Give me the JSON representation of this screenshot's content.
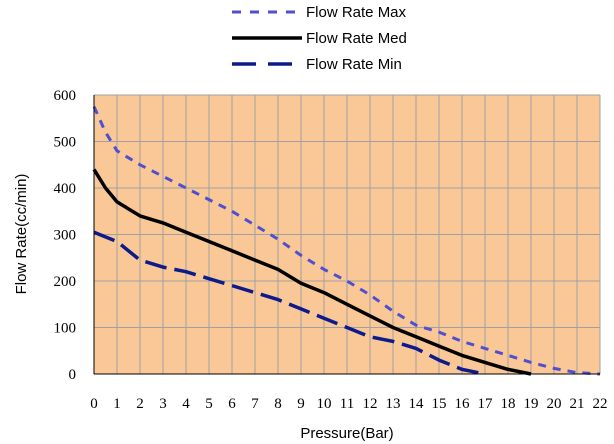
{
  "colors": {
    "plot_background": "#FAC896",
    "grid": "#A0A0A0",
    "axis": "#000000",
    "max": "#4F4FD0",
    "med": "#000000",
    "min": "#0C1A8C"
  },
  "chart_data": {
    "type": "line",
    "xlabel": "Pressure(Bar)",
    "ylabel": "Flow Rate(cc/min)",
    "xlim": [
      0,
      22
    ],
    "ylim": [
      0,
      600
    ],
    "x_ticks": [
      "0",
      "1",
      "2",
      "3",
      "4",
      "5",
      "6",
      "7",
      "8",
      "9",
      "10",
      "11",
      "12",
      "13",
      "14",
      "15",
      "16",
      "17",
      "18",
      "19",
      "20",
      "21",
      "22"
    ],
    "y_ticks": [
      "0",
      "100",
      "200",
      "300",
      "400",
      "500",
      "600"
    ],
    "grid": true,
    "legend_position": "top-center",
    "series": [
      {
        "name": "Flow Rate Max",
        "style": "dashed",
        "x": [
          0,
          0.5,
          1,
          2,
          3,
          4,
          5,
          6,
          7,
          8,
          9,
          10,
          11,
          12,
          13,
          14,
          15,
          16,
          17,
          18,
          19,
          20,
          21,
          22
        ],
        "y": [
          575,
          520,
          480,
          450,
          425,
          400,
          375,
          350,
          320,
          290,
          255,
          225,
          200,
          170,
          135,
          105,
          90,
          70,
          55,
          40,
          25,
          12,
          3,
          0
        ]
      },
      {
        "name": "Flow Rate Med",
        "style": "solid",
        "x": [
          0,
          0.5,
          1,
          2,
          3,
          4,
          5,
          6,
          7,
          8,
          9,
          10,
          11,
          12,
          13,
          14,
          15,
          16,
          17,
          18,
          19
        ],
        "y": [
          440,
          400,
          370,
          340,
          325,
          305,
          285,
          265,
          245,
          225,
          195,
          175,
          150,
          125,
          100,
          80,
          60,
          40,
          25,
          10,
          0
        ]
      },
      {
        "name": "Flow Rate Min",
        "style": "longdash",
        "x": [
          0,
          1,
          2,
          3,
          4,
          5,
          6,
          7,
          8,
          9,
          10,
          11,
          12,
          13,
          14,
          15,
          16,
          17
        ],
        "y": [
          305,
          285,
          245,
          230,
          220,
          205,
          190,
          175,
          160,
          140,
          120,
          100,
          80,
          70,
          55,
          30,
          10,
          0
        ]
      }
    ]
  }
}
